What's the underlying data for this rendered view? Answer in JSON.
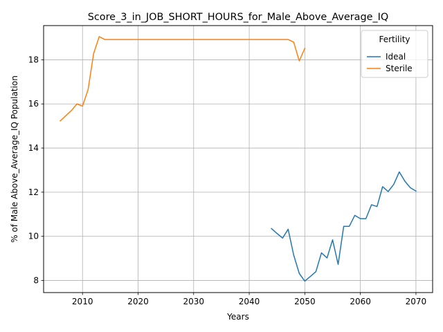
{
  "chart_data": {
    "type": "line",
    "title": "Score_3_in_JOB_SHORT_HOURS_for_Male_Above_Average_IQ",
    "xlabel": "Years",
    "ylabel": "% of Male Above_Average_IQ Population",
    "xlim": [
      2003,
      2073
    ],
    "ylim": [
      7.45,
      19.55
    ],
    "xticks": [
      2010,
      2020,
      2030,
      2040,
      2050,
      2060,
      2070
    ],
    "yticks": [
      8,
      10,
      12,
      14,
      16,
      18
    ],
    "grid": true,
    "legend": {
      "title": "Fertility",
      "placement": "top-right"
    },
    "series": [
      {
        "name": "Ideal",
        "color": "#1f77b4",
        "x": [
          2044,
          2045,
          2046,
          2047,
          2048,
          2049,
          2050,
          2051,
          2052,
          2053,
          2054,
          2055,
          2056,
          2057,
          2058,
          2059,
          2060,
          2061,
          2062,
          2063,
          2064,
          2065,
          2066,
          2067,
          2068,
          2069,
          2070
        ],
        "y": [
          10.35,
          10.13,
          9.92,
          10.32,
          9.15,
          8.32,
          7.97,
          8.18,
          8.4,
          9.25,
          9.02,
          9.84,
          8.73,
          10.45,
          10.45,
          10.95,
          10.8,
          10.8,
          11.43,
          11.35,
          12.25,
          12.03,
          12.35,
          12.92,
          12.5,
          12.2,
          12.05
        ]
      },
      {
        "name": "Sterile",
        "color": "#ff7f0e",
        "x": [
          2006,
          2007,
          2008,
          2009,
          2010,
          2011,
          2012,
          2013,
          2014,
          2015,
          2016,
          2017,
          2018,
          2019,
          2020,
          2021,
          2022,
          2023,
          2024,
          2025,
          2026,
          2027,
          2028,
          2029,
          2030,
          2031,
          2032,
          2033,
          2034,
          2035,
          2036,
          2037,
          2038,
          2039,
          2040,
          2041,
          2042,
          2043,
          2044,
          2045,
          2046,
          2047,
          2048,
          2049,
          2050
        ],
        "y": [
          15.23,
          15.47,
          15.7,
          16.0,
          15.9,
          16.65,
          18.28,
          19.05,
          18.92,
          18.92,
          18.92,
          18.92,
          18.92,
          18.92,
          18.92,
          18.92,
          18.92,
          18.92,
          18.92,
          18.92,
          18.92,
          18.92,
          18.92,
          18.92,
          18.92,
          18.92,
          18.92,
          18.92,
          18.92,
          18.92,
          18.92,
          18.92,
          18.92,
          18.92,
          18.92,
          18.92,
          18.92,
          18.92,
          18.92,
          18.92,
          18.92,
          18.92,
          18.8,
          17.95,
          18.52
        ]
      }
    ]
  }
}
